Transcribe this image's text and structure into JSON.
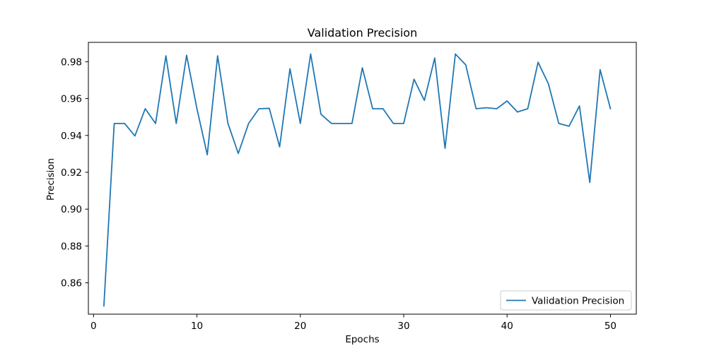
{
  "chart_data": {
    "type": "line",
    "title": "Validation Precision",
    "xlabel": "Epochs",
    "ylabel": "Precision",
    "xlim": [
      -0.5,
      52.5
    ],
    "ylim": [
      0.843,
      0.9905
    ],
    "xticks": [
      0,
      10,
      20,
      30,
      40,
      50
    ],
    "yticks": [
      0.86,
      0.88,
      0.9,
      0.92,
      0.94,
      0.96,
      0.98
    ],
    "grid": false,
    "legend": "lower-right",
    "series": [
      {
        "name": "Validation Precision",
        "color": "#1f77b4",
        "x": [
          1,
          2,
          3,
          4,
          5,
          6,
          7,
          8,
          9,
          10,
          11,
          12,
          13,
          14,
          15,
          16,
          17,
          18,
          19,
          20,
          21,
          22,
          23,
          24,
          25,
          26,
          27,
          28,
          29,
          30,
          31,
          32,
          33,
          34,
          35,
          36,
          37,
          38,
          39,
          40,
          41,
          42,
          43,
          44,
          45,
          46,
          47,
          48,
          49,
          50
        ],
        "y": [
          0.8475,
          0.9465,
          0.9465,
          0.9397,
          0.9545,
          0.9465,
          0.9832,
          0.9465,
          0.9835,
          0.9545,
          0.9295,
          0.9832,
          0.9465,
          0.9302,
          0.9465,
          0.9545,
          0.9547,
          0.9338,
          0.9762,
          0.9465,
          0.9842,
          0.9515,
          0.9465,
          0.9465,
          0.9465,
          0.9767,
          0.9545,
          0.9545,
          0.9465,
          0.9465,
          0.9705,
          0.959,
          0.982,
          0.933,
          0.9842,
          0.9783,
          0.9545,
          0.955,
          0.9545,
          0.9587,
          0.9527,
          0.9545,
          0.9797,
          0.968,
          0.9465,
          0.945,
          0.956,
          0.9145,
          0.9757,
          0.9545
        ]
      }
    ]
  }
}
